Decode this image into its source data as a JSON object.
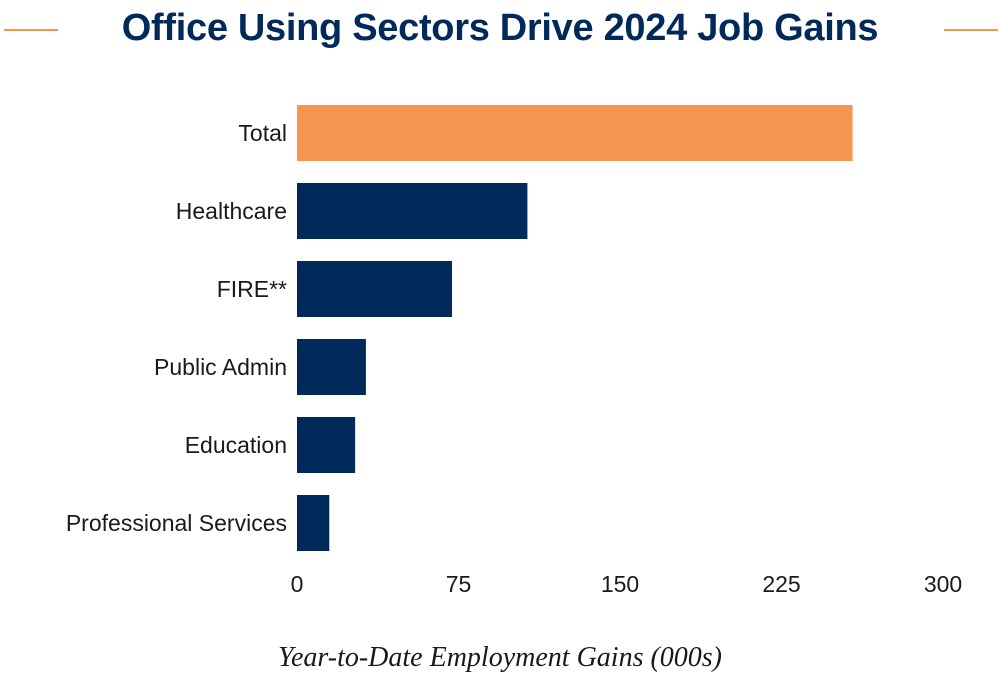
{
  "colors": {
    "highlight": "#F4964F",
    "bar": "#012A5B",
    "title": "#012A5B",
    "rule": "#F4964F"
  },
  "chart_data": {
    "type": "bar",
    "orientation": "horizontal",
    "title": "Office Using Sectors Drive 2024 Job Gains",
    "xlabel": "Year-to-Date Employment Gains (000s)",
    "ylabel": "",
    "categories": [
      "Total",
      "Healthcare",
      "FIRE**",
      "Public Admin",
      "Education",
      "Professional Services"
    ],
    "values": [
      258,
      107,
      72,
      32,
      27,
      15
    ],
    "highlighted_category": "Total",
    "xlim": [
      0,
      300
    ],
    "xticks": [
      "0",
      "75",
      "150",
      "225",
      "300"
    ],
    "grid": false,
    "legend": "none"
  }
}
